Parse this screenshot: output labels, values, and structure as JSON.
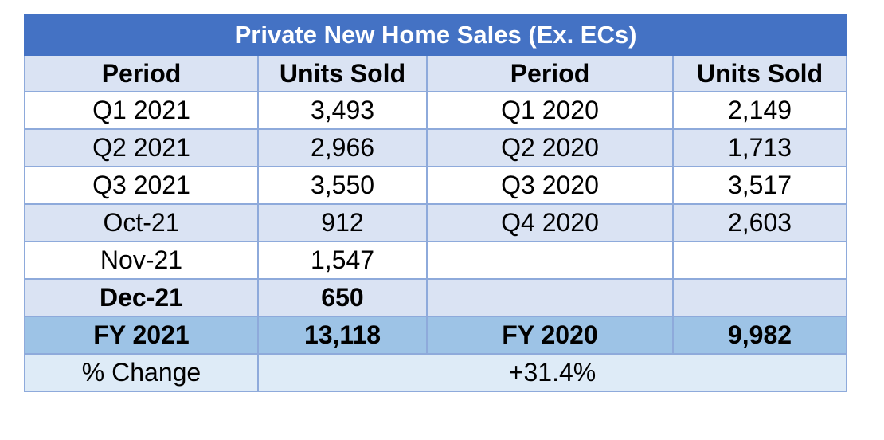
{
  "title": "Private New Home Sales (Ex. ECs)",
  "headers": [
    "Period",
    "Units Sold",
    "Period",
    "Units Sold"
  ],
  "rows": [
    [
      "Q1 2021",
      "3,493",
      "Q1 2020",
      "2,149"
    ],
    [
      "Q2 2021",
      "2,966",
      "Q2 2020",
      "1,713"
    ],
    [
      "Q3 2021",
      "3,550",
      "Q3 2020",
      "3,517"
    ],
    [
      "Oct-21",
      "912",
      "Q4 2020",
      "2,603"
    ],
    [
      "Nov-21",
      "1,547",
      "",
      ""
    ],
    [
      "Dec-21",
      "650",
      "",
      ""
    ]
  ],
  "totals": [
    "FY 2021",
    "13,118",
    "FY 2020",
    "9,982"
  ],
  "change": {
    "label": "% Change",
    "value": "+31.4%"
  },
  "colors": {
    "title_bg": "#4472c4",
    "header_bg": "#dae3f3",
    "band_bg": "#dae3f3",
    "total_bg": "#9dc3e6",
    "change_bg": "#deebf7",
    "border": "#8eaadb"
  }
}
